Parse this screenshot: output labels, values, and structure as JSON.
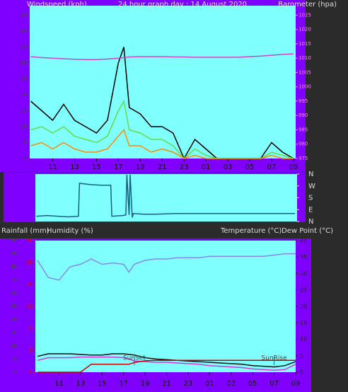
{
  "chart_data": [
    {
      "type": "line",
      "title": "24 hour graph day : 14 August 2020",
      "ylabel": "Windspeed (kph)",
      "y2label": "Barometer (hpa)",
      "x": [
        9,
        10,
        11,
        12,
        13,
        14,
        15,
        16,
        17,
        17.5,
        18,
        19,
        20,
        21,
        22,
        23,
        24,
        25,
        26,
        27,
        28,
        29,
        30,
        31,
        32,
        33
      ],
      "xlim": [
        8.9,
        33.2
      ],
      "xticks": [
        11,
        13,
        15,
        17,
        19,
        21,
        23,
        {
          "value": 25,
          "label": "01"
        },
        {
          "value": 27,
          "label": "03"
        },
        {
          "value": 29,
          "label": "05"
        },
        {
          "value": 31,
          "label": "07"
        },
        {
          "value": 33,
          "label": "09"
        }
      ],
      "ylim": [
        0,
        48
      ],
      "yticks": [
        0,
        5,
        10,
        15,
        20,
        25,
        30,
        35,
        40,
        45
      ],
      "y2lim": [
        975,
        1028.3
      ],
      "y2ticks": [
        975,
        980,
        985,
        990,
        995,
        1000,
        1005,
        1010,
        1015,
        1020,
        1025
      ],
      "series": [
        {
          "color": "#000000",
          "values": [
            18,
            15,
            12,
            17,
            12,
            10,
            8,
            12,
            30,
            35,
            16,
            14,
            10,
            10,
            8,
            0,
            6,
            3,
            0,
            0,
            0,
            0,
            0,
            5,
            2,
            0
          ]
        },
        {
          "color": "#66dd44",
          "values": [
            9,
            10,
            8,
            10,
            7,
            6,
            5,
            7,
            15,
            18,
            9,
            8,
            6,
            6,
            4,
            0,
            3,
            1,
            0,
            0,
            0,
            0,
            0,
            2,
            1,
            0
          ]
        },
        {
          "color": "#ff8800",
          "values": [
            4,
            5,
            3,
            5,
            3,
            2,
            2,
            3,
            7,
            9,
            4,
            4,
            2,
            3,
            2,
            0,
            1,
            0,
            0,
            0,
            0,
            0,
            0,
            1,
            0,
            0
          ]
        },
        {
          "color": "#cc44cc",
          "axis": "y2",
          "values": [
            1010.5,
            1010.2,
            1010,
            1009.8,
            1009.6,
            1009.5,
            1009.5,
            1009.7,
            1010,
            1010.2,
            1010.4,
            1010.5,
            1010.5,
            1010.5,
            1010.4,
            1010.4,
            1010.3,
            1010.3,
            1010.3,
            1010.3,
            1010.3,
            1010.5,
            1010.7,
            1011,
            1011.3,
            1011.5
          ]
        }
      ]
    },
    {
      "type": "line",
      "x": [
        9,
        10,
        11,
        12,
        12.9,
        13,
        14,
        15,
        15.9,
        16,
        17,
        17.3,
        17.4,
        17.6,
        17.7,
        17.9,
        18,
        19,
        20,
        22,
        25,
        28,
        31,
        33
      ],
      "xlim": [
        8.9,
        33.2
      ],
      "ylim": [
        0,
        360
      ],
      "y2ticks": [
        {
          "value": 360,
          "label": "N"
        },
        {
          "value": 270,
          "label": "W"
        },
        {
          "value": 180,
          "label": "S"
        },
        {
          "value": 90,
          "label": "E"
        },
        {
          "value": 0,
          "label": "N"
        }
      ],
      "series": [
        {
          "color": "#1a6080",
          "values": [
            40,
            45,
            40,
            35,
            40,
            290,
            280,
            275,
            275,
            40,
            45,
            50,
            355,
            50,
            355,
            30,
            60,
            55,
            55,
            60,
            60,
            60,
            60,
            60
          ]
        }
      ]
    },
    {
      "type": "line",
      "ylabel": "Humidity (%)",
      "y3label": "Rainfall (mm)",
      "y2label": "Temperature (°C)",
      "y2label2": "Dew Point (°C)",
      "x": [
        9,
        10,
        11,
        12,
        13,
        14,
        15,
        16,
        17,
        17.5,
        18,
        19,
        20,
        21,
        22,
        23,
        24,
        25,
        26,
        27,
        28,
        29,
        30,
        31,
        32,
        33
      ],
      "xlim": [
        8.8,
        33
      ],
      "xticks": [
        11,
        13,
        15,
        17,
        19,
        21,
        23,
        {
          "value": 25,
          "label": "01"
        },
        {
          "value": 27,
          "label": "03"
        },
        {
          "value": 29,
          "label": "05"
        },
        {
          "value": 31,
          "label": "07"
        },
        {
          "value": 33,
          "label": "09"
        }
      ],
      "ylim": [
        0,
        100
      ],
      "yticks": [
        0,
        10,
        20,
        30,
        40,
        50,
        60,
        70,
        80,
        90,
        100
      ],
      "y2lim": [
        0,
        40
      ],
      "y2ticks": [
        0,
        5,
        10,
        15,
        20,
        25,
        30,
        35,
        40
      ],
      "y3lim": [
        0,
        30
      ],
      "y3ticks": [
        0,
        5,
        10,
        15,
        20,
        25,
        30
      ],
      "annotations": [
        {
          "text": "SunSet",
          "x": 18
        },
        {
          "text": "SunRise",
          "x": 31
        }
      ],
      "series": [
        {
          "color": "#8888ee",
          "values": [
            85,
            72,
            70,
            80,
            82,
            86,
            82,
            83,
            82,
            76,
            82,
            85,
            86,
            86,
            87,
            87,
            87,
            88,
            88,
            88,
            88,
            88,
            88,
            89,
            90,
            90
          ]
        },
        {
          "color": "#111111",
          "values": [
            12,
            14,
            14,
            14,
            13.5,
            13,
            13,
            14,
            14,
            13.5,
            13,
            11,
            10,
            9.5,
            9,
            8.5,
            8,
            7.5,
            7,
            6.5,
            6,
            5,
            4.5,
            4,
            5,
            8
          ]
        },
        {
          "color": "#dd33dd",
          "values": [
            9,
            11,
            11,
            11,
            11.5,
            11.5,
            11.5,
            11.5,
            11,
            10,
            8.5,
            8,
            7.5,
            7.5,
            7,
            6.5,
            6,
            5,
            4.5,
            4,
            3.5,
            2.5,
            2,
            1.5,
            2,
            6
          ]
        },
        {
          "color": "#cc0000",
          "axis": "y3",
          "values": [
            0,
            0,
            0,
            0,
            0,
            1.8,
            1.8,
            1.8,
            1.8,
            1.8,
            2.2,
            2.6,
            2.7,
            2.7,
            2.7,
            2.7,
            2.7,
            2.7,
            2.7,
            2.7,
            2.7,
            2.7,
            2.7,
            2.7,
            2.7,
            2.7
          ]
        }
      ]
    }
  ]
}
